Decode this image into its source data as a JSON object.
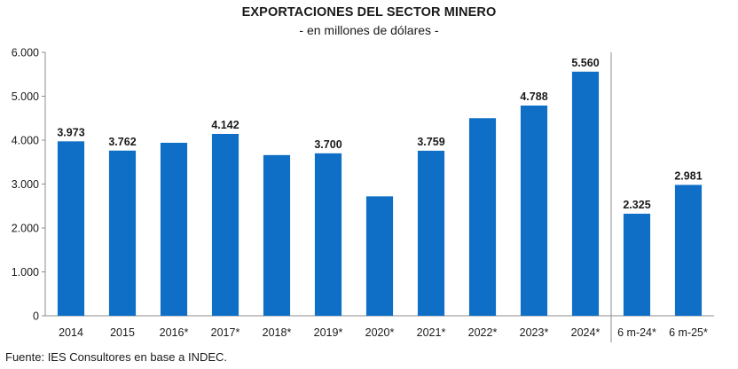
{
  "chart_data": {
    "type": "bar",
    "title": "EXPORTACIONES DEL SECTOR MINERO",
    "subtitle": "- en millones de dólares -",
    "categories": [
      "2014",
      "2015",
      "2016*",
      "2017*",
      "2018*",
      "2019*",
      "2020*",
      "2021*",
      "2022*",
      "2023*",
      "2024*",
      "6 m-24*",
      "6 m-25*"
    ],
    "values": [
      3973,
      3762,
      3940,
      4142,
      3660,
      3700,
      2720,
      3759,
      4500,
      4788,
      5560,
      2325,
      2981
    ],
    "data_labels": [
      "3.973",
      "3.762",
      "",
      "4.142",
      "",
      "3.700",
      "",
      "3.759",
      "",
      "4.788",
      "5.560",
      "2.325",
      "2.981"
    ],
    "ylim": [
      0,
      6000
    ],
    "yticks": [
      0,
      1000,
      2000,
      3000,
      4000,
      5000,
      6000
    ],
    "ytick_labels": [
      "0",
      "1.000",
      "2.000",
      "3.000",
      "4.000",
      "5.000",
      "6.000"
    ],
    "bar_color": "#0f6fc6",
    "separator_after_index": 10,
    "grid": false,
    "xlabel": "",
    "ylabel": ""
  },
  "source": "Fuente: IES Consultores en base a INDEC."
}
